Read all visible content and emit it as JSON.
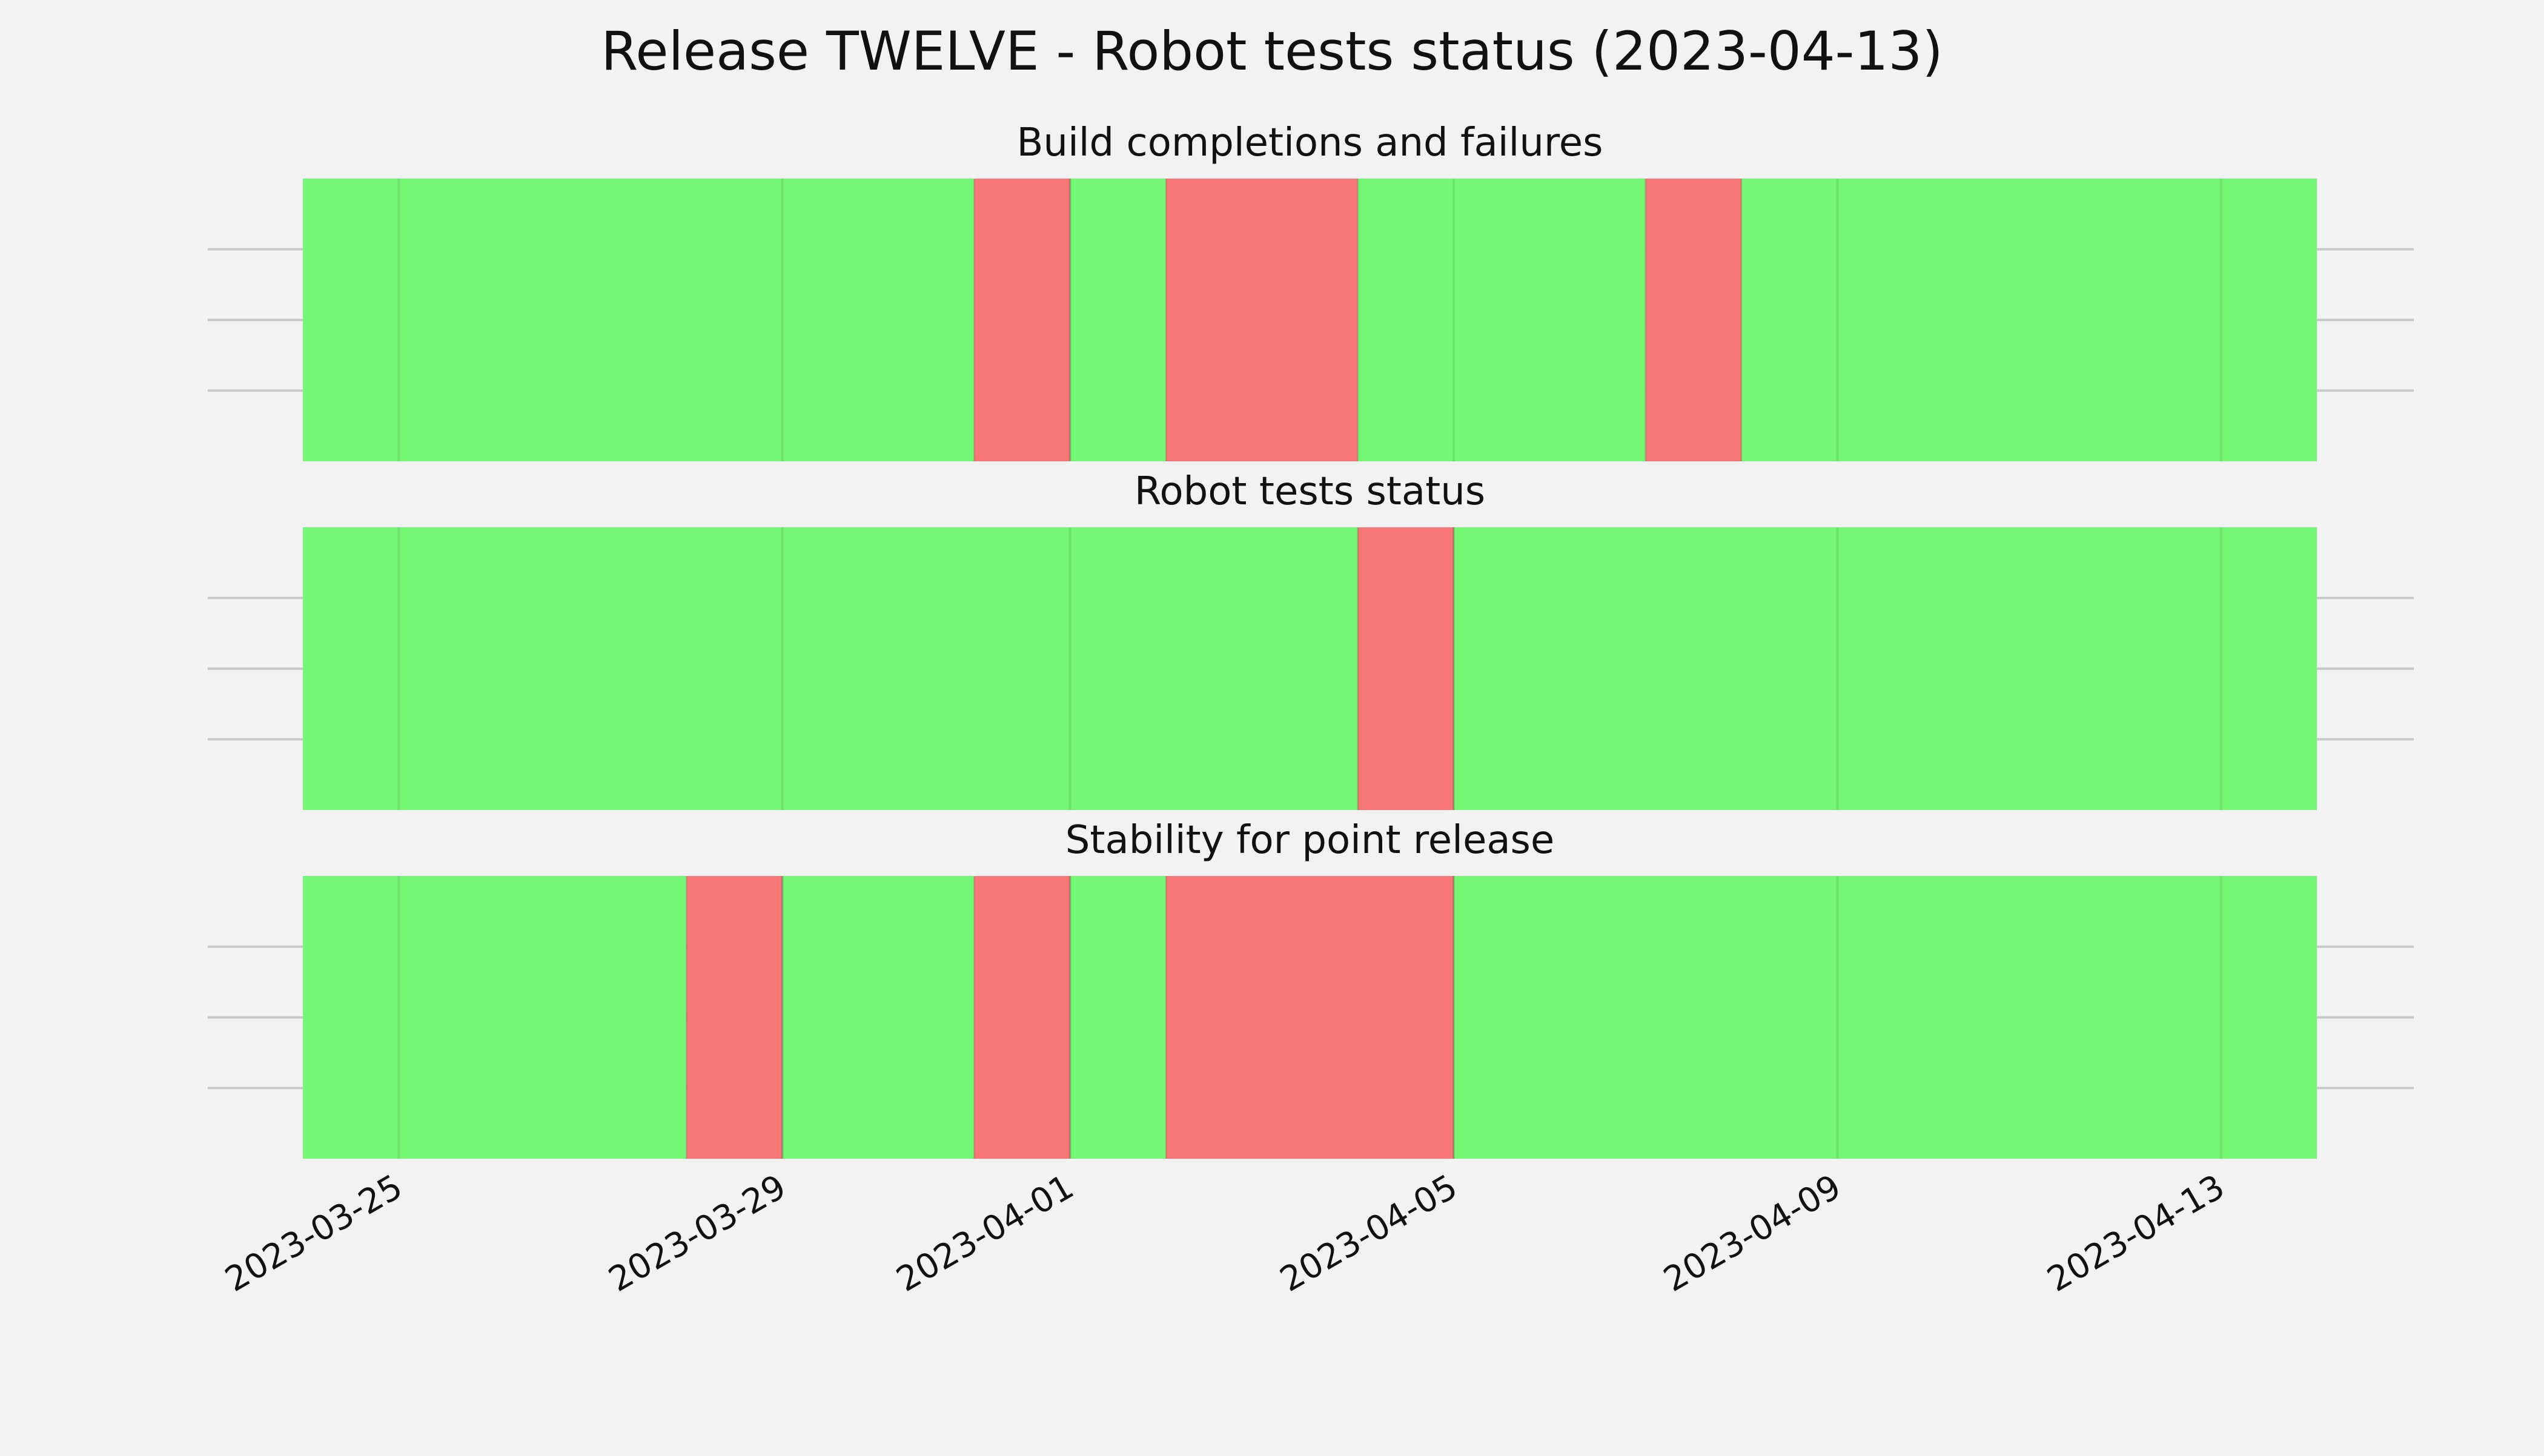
{
  "chart_data": {
    "type": "bar",
    "title": "Release TWELVE - Robot tests status (2023-04-13)",
    "xlabel": "",
    "ylabel": "",
    "x_axis": {
      "type": "date",
      "range": [
        "2023-03-24",
        "2023-04-14"
      ],
      "tick_labels": [
        "2023-03-25",
        "2023-03-29",
        "2023-04-01",
        "2023-04-05",
        "2023-04-09",
        "2023-04-13"
      ]
    },
    "grid": true,
    "legend": "none",
    "colors": {
      "pass": "#75f776",
      "fail": "#f77676",
      "background": "#f2f2f2"
    },
    "panels": [
      {
        "title": "Build completions and failures",
        "segments": [
          {
            "start": "2023-03-24",
            "end": "2023-03-31",
            "status": "pass"
          },
          {
            "start": "2023-03-31",
            "end": "2023-04-01",
            "status": "fail"
          },
          {
            "start": "2023-04-01",
            "end": "2023-04-02",
            "status": "pass"
          },
          {
            "start": "2023-04-02",
            "end": "2023-04-04",
            "status": "fail"
          },
          {
            "start": "2023-04-04",
            "end": "2023-04-07",
            "status": "pass"
          },
          {
            "start": "2023-04-07",
            "end": "2023-04-08",
            "status": "fail"
          },
          {
            "start": "2023-04-08",
            "end": "2023-04-14",
            "status": "pass"
          }
        ]
      },
      {
        "title": "Robot tests status",
        "segments": [
          {
            "start": "2023-03-24",
            "end": "2023-04-04",
            "status": "pass"
          },
          {
            "start": "2023-04-04",
            "end": "2023-04-05",
            "status": "fail"
          },
          {
            "start": "2023-04-05",
            "end": "2023-04-14",
            "status": "pass"
          }
        ]
      },
      {
        "title": "Stability for point release",
        "segments": [
          {
            "start": "2023-03-24",
            "end": "2023-03-28",
            "status": "pass"
          },
          {
            "start": "2023-03-28",
            "end": "2023-03-29",
            "status": "fail"
          },
          {
            "start": "2023-03-29",
            "end": "2023-03-31",
            "status": "pass"
          },
          {
            "start": "2023-03-31",
            "end": "2023-04-01",
            "status": "fail"
          },
          {
            "start": "2023-04-01",
            "end": "2023-04-02",
            "status": "pass"
          },
          {
            "start": "2023-04-02",
            "end": "2023-04-05",
            "status": "fail"
          },
          {
            "start": "2023-04-05",
            "end": "2023-04-14",
            "status": "pass"
          }
        ]
      }
    ]
  }
}
